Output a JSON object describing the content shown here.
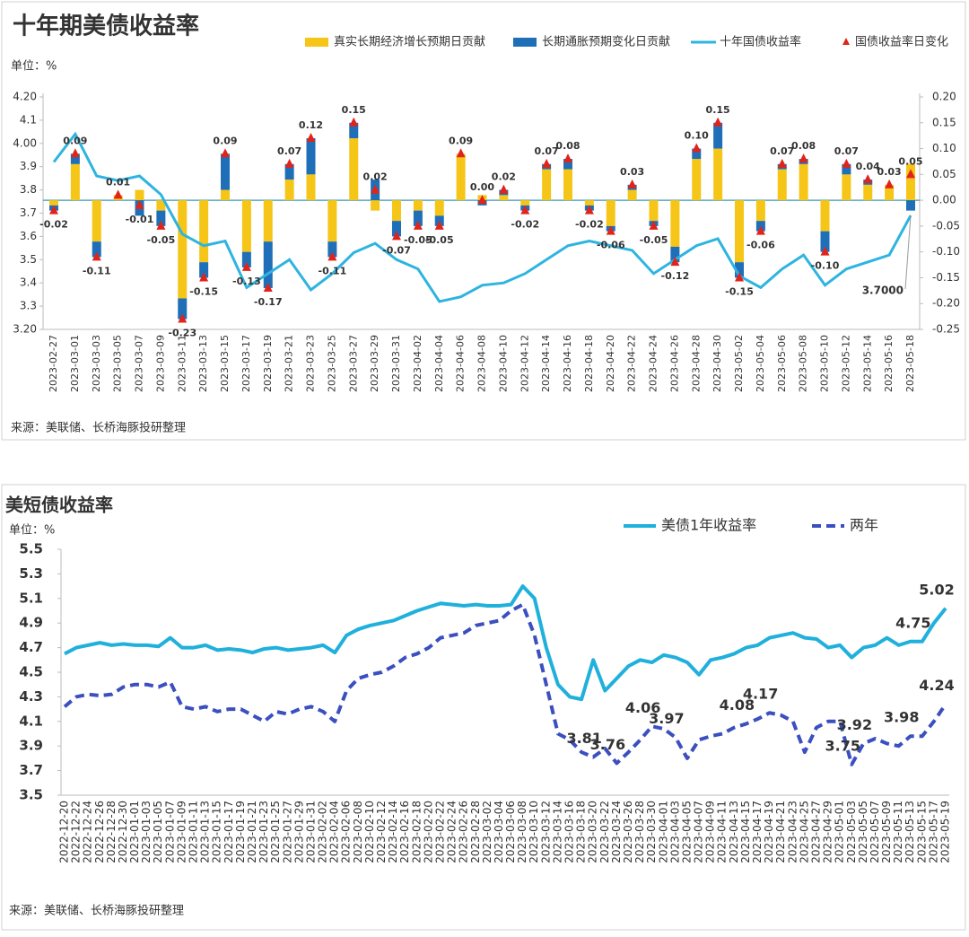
{
  "chart_data": [
    {
      "type": "combo",
      "title": "十年期美债收益率",
      "unit_label": "单位：%",
      "source": "来源：美联储、长桥海豚投研整理",
      "annotation": "3.7000",
      "categories": [
        "2023-02-27",
        "2023-03-01",
        "2023-03-03",
        "2023-03-05",
        "2023-03-07",
        "2023-03-09",
        "2023-03-11",
        "2023-03-13",
        "2023-03-15",
        "2023-03-17",
        "2023-03-19",
        "2023-03-21",
        "2023-03-23",
        "2023-03-25",
        "2023-03-27",
        "2023-03-29",
        "2023-03-31",
        "2023-04-02",
        "2023-04-04",
        "2023-04-06",
        "2023-04-08",
        "2023-04-10",
        "2023-04-12",
        "2023-04-14",
        "2023-04-16",
        "2023-04-18",
        "2023-04-20",
        "2023-04-22",
        "2023-04-24",
        "2023-04-26",
        "2023-04-28",
        "2023-04-30",
        "2023-05-02",
        "2023-05-04",
        "2023-05-06",
        "2023-05-08",
        "2023-05-10",
        "2023-05-12",
        "2023-05-14",
        "2023-05-16",
        "2023-05-18"
      ],
      "ylim": [
        3.2,
        4.2
      ],
      "yticks": [
        {
          "value": 3.2,
          "label": "3.20"
        },
        3.3,
        3.4,
        3.5,
        3.6,
        3.7,
        3.8,
        3.9,
        {
          "value": 4.0,
          "label": "4.00"
        },
        4.1,
        {
          "value": 4.2,
          "label": "4.20"
        }
      ],
      "y2lim": [
        -0.25,
        0.2
      ],
      "y2ticks": [
        -0.25,
        {
          "value": -0.2,
          "label": "-0.20"
        },
        -0.15,
        {
          "value": -0.1,
          "label": "-0.10"
        },
        -0.05,
        {
          "value": 0,
          "label": "0.00"
        },
        0.05,
        {
          "value": 0.1,
          "label": "0.10"
        },
        0.15,
        {
          "value": 0.2,
          "label": "0.20"
        }
      ],
      "series": [
        {
          "name": "真实长期经济增长预期日贡献",
          "kind": "bar",
          "axis": "y2",
          "color": "#f5c518",
          "values": [
            -0.01,
            0.07,
            -0.08,
            0.01,
            0.02,
            -0.02,
            -0.19,
            -0.12,
            0.02,
            -0.1,
            -0.08,
            0.04,
            0.05,
            -0.08,
            0.12,
            -0.02,
            -0.04,
            -0.02,
            -0.03,
            0.09,
            0.01,
            0.01,
            -0.01,
            0.06,
            0.06,
            -0.01,
            -0.05,
            0.02,
            -0.04,
            -0.09,
            0.08,
            0.1,
            -0.12,
            -0.04,
            0.06,
            0.07,
            -0.06,
            0.05,
            0.03,
            0.03,
            0.07
          ]
        },
        {
          "name": "长期通胀预期变化日贡献",
          "kind": "bar",
          "axis": "y2",
          "color": "#1f6fb8",
          "values": [
            -0.01,
            0.02,
            -0.03,
            0.0,
            -0.03,
            -0.03,
            -0.04,
            -0.03,
            0.07,
            -0.03,
            -0.09,
            0.03,
            0.07,
            -0.03,
            0.03,
            0.04,
            -0.03,
            -0.03,
            -0.02,
            0.0,
            -0.01,
            0.01,
            -0.01,
            0.01,
            0.02,
            -0.01,
            -0.01,
            0.01,
            -0.01,
            -0.03,
            0.02,
            0.05,
            -0.03,
            -0.02,
            0.01,
            0.01,
            -0.04,
            0.02,
            0.01,
            0.0,
            -0.02
          ]
        },
        {
          "name": "十年国债收益率",
          "kind": "line",
          "color": "#2db4e0",
          "values": [
            3.92,
            4.04,
            3.86,
            3.84,
            3.86,
            3.78,
            3.61,
            3.56,
            3.58,
            3.38,
            3.44,
            3.5,
            3.37,
            3.44,
            3.53,
            3.57,
            3.5,
            3.46,
            3.32,
            3.34,
            3.39,
            3.4,
            3.44,
            3.5,
            3.56,
            3.58,
            3.56,
            3.54,
            3.44,
            3.5,
            3.56,
            3.59,
            3.43,
            3.38,
            3.46,
            3.52,
            3.39,
            3.46,
            3.49,
            3.52,
            3.69
          ]
        },
        {
          "name": "国债收益率日变化",
          "kind": "marker",
          "axis": "y2",
          "color": "#e2231a",
          "values": [
            -0.02,
            0.09,
            -0.11,
            0.01,
            -0.01,
            -0.05,
            -0.23,
            -0.15,
            0.09,
            -0.13,
            -0.17,
            0.07,
            0.12,
            -0.11,
            0.15,
            0.02,
            -0.07,
            -0.05,
            -0.05,
            0.09,
            0.0,
            0.02,
            -0.02,
            0.07,
            0.08,
            -0.02,
            -0.06,
            0.03,
            -0.05,
            -0.12,
            0.1,
            0.15,
            -0.15,
            -0.06,
            0.07,
            0.08,
            -0.1,
            0.07,
            0.04,
            0.03,
            0.05
          ],
          "value_labels": [
            "-0.02",
            "0.09",
            "-0.11",
            "0.01",
            "-0.01",
            "-0.05",
            "-0.23",
            "-0.15",
            "0.09",
            "-0.13",
            "-0.17",
            "0.07",
            "0.12",
            "-0.11",
            "0.15",
            "0.02",
            "-0.07",
            "-0.05",
            "-0.05",
            "0.09",
            "0.00",
            "0.02",
            "-0.02",
            "0.07",
            "0.08",
            "-0.02",
            "-0.06",
            "0.03",
            "-0.05",
            "-0.12",
            "0.10",
            "0.15",
            "-0.15",
            "-0.06",
            "0.07",
            "0.08",
            "-0.10",
            "0.07",
            "0.04",
            "0.03",
            "0.05"
          ]
        }
      ]
    },
    {
      "type": "line",
      "title": "美短债收益率",
      "unit_label": "单位：%",
      "source": "来源：美联储、长桥海豚投研整理",
      "categories": [
        "2022-12-20",
        "2022-12-22",
        "2022-12-24",
        "2022-12-26",
        "2022-12-28",
        "2022-12-30",
        "2023-01-01",
        "2023-01-03",
        "2023-01-05",
        "2023-01-07",
        "2023-01-09",
        "2023-01-11",
        "2023-01-13",
        "2023-01-15",
        "2023-01-17",
        "2023-01-19",
        "2023-01-21",
        "2023-01-23",
        "2023-01-25",
        "2023-01-27",
        "2023-01-29",
        "2023-01-31",
        "2023-02-02",
        "2023-02-04",
        "2023-02-06",
        "2023-02-08",
        "2023-02-10",
        "2023-02-12",
        "2023-02-14",
        "2023-02-16",
        "2023-02-18",
        "2023-02-20",
        "2023-02-22",
        "2023-02-24",
        "2023-02-26",
        "2023-02-28",
        "2023-03-02",
        "2023-03-04",
        "2023-03-06",
        "2023-03-08",
        "2023-03-10",
        "2023-03-12",
        "2023-03-14",
        "2023-03-16",
        "2023-03-18",
        "2023-03-20",
        "2023-03-22",
        "2023-03-24",
        "2023-03-26",
        "2023-03-28",
        "2023-03-30",
        "2023-04-01",
        "2023-04-03",
        "2023-04-05",
        "2023-04-07",
        "2023-04-09",
        "2023-04-11",
        "2023-04-13",
        "2023-04-15",
        "2023-04-17",
        "2023-04-19",
        "2023-04-21",
        "2023-04-23",
        "2023-04-25",
        "2023-04-27",
        "2023-04-29",
        "2023-05-01",
        "2023-05-03",
        "2023-05-05",
        "2023-05-07",
        "2023-05-09",
        "2023-05-11",
        "2023-05-13",
        "2023-05-15",
        "2023-05-17",
        "2023-05-19"
      ],
      "ylim": [
        3.5,
        5.5
      ],
      "yticks": [
        3.5,
        3.7,
        3.9,
        4.1,
        4.3,
        4.5,
        4.7,
        4.9,
        5.1,
        5.3,
        5.5
      ],
      "series": [
        {
          "name": "美债1年收益率",
          "color": "#1fb0dc",
          "style": "solid",
          "values": [
            4.65,
            4.7,
            4.72,
            4.74,
            4.72,
            4.73,
            4.72,
            4.72,
            4.71,
            4.78,
            4.7,
            4.7,
            4.72,
            4.68,
            4.69,
            4.68,
            4.66,
            4.69,
            4.7,
            4.68,
            4.69,
            4.7,
            4.72,
            4.66,
            4.8,
            4.85,
            4.88,
            4.9,
            4.92,
            4.96,
            5.0,
            5.03,
            5.06,
            5.05,
            5.04,
            5.05,
            5.04,
            5.04,
            5.05,
            5.2,
            5.1,
            4.7,
            4.4,
            4.3,
            4.28,
            4.6,
            4.35,
            4.45,
            4.55,
            4.6,
            4.58,
            4.64,
            4.62,
            4.58,
            4.48,
            4.6,
            4.62,
            4.65,
            4.7,
            4.72,
            4.78,
            4.8,
            4.82,
            4.78,
            4.77,
            4.7,
            4.72,
            4.62,
            4.7,
            4.72,
            4.78,
            4.72,
            4.75,
            4.75,
            4.9,
            5.02
          ],
          "value_labels": [
            null,
            null,
            null,
            null,
            null,
            null,
            null,
            null,
            null,
            null,
            null,
            null,
            null,
            null,
            null,
            null,
            null,
            null,
            null,
            null,
            null,
            null,
            null,
            null,
            null,
            null,
            null,
            null,
            null,
            null,
            null,
            null,
            null,
            null,
            null,
            null,
            null,
            null,
            null,
            null,
            null,
            null,
            null,
            null,
            null,
            null,
            null,
            null,
            null,
            null,
            null,
            null,
            null,
            null,
            null,
            null,
            null,
            null,
            null,
            null,
            null,
            null,
            null,
            null,
            null,
            null,
            null,
            null,
            null,
            null,
            null,
            null,
            null,
            "4.75",
            null,
            "5.02"
          ]
        },
        {
          "name": "两年",
          "color": "#3b4fc0",
          "style": "dashed",
          "values": [
            4.22,
            4.3,
            4.32,
            4.31,
            4.32,
            4.38,
            4.4,
            4.4,
            4.38,
            4.42,
            4.22,
            4.2,
            4.22,
            4.18,
            4.2,
            4.2,
            4.15,
            4.1,
            4.18,
            4.16,
            4.2,
            4.22,
            4.18,
            4.1,
            4.35,
            4.45,
            4.48,
            4.5,
            4.55,
            4.62,
            4.65,
            4.7,
            4.78,
            4.8,
            4.82,
            4.88,
            4.9,
            4.92,
            5.0,
            5.05,
            4.8,
            4.4,
            4.0,
            3.95,
            3.85,
            3.81,
            3.88,
            3.76,
            3.85,
            3.95,
            4.06,
            4.04,
            3.97,
            3.8,
            3.95,
            3.98,
            4.0,
            4.05,
            4.08,
            4.12,
            4.17,
            4.15,
            4.1,
            3.85,
            4.05,
            4.1,
            4.1,
            3.75,
            3.92,
            3.96,
            3.92,
            3.9,
            3.98,
            3.98,
            4.1,
            4.24
          ],
          "value_labels": [
            null,
            null,
            null,
            null,
            null,
            null,
            null,
            null,
            null,
            null,
            null,
            null,
            null,
            null,
            null,
            null,
            null,
            null,
            null,
            null,
            null,
            null,
            null,
            null,
            null,
            null,
            null,
            null,
            null,
            null,
            null,
            null,
            null,
            null,
            null,
            null,
            null,
            null,
            null,
            null,
            null,
            null,
            null,
            null,
            null,
            "3.81",
            null,
            "3.76",
            null,
            null,
            "4.06",
            null,
            "3.97",
            null,
            null,
            null,
            null,
            null,
            "4.08",
            null,
            "4.17",
            null,
            null,
            null,
            null,
            null,
            null,
            "3.75",
            "3.92",
            null,
            null,
            null,
            "3.98",
            null,
            null,
            "4.24"
          ]
        }
      ]
    }
  ]
}
